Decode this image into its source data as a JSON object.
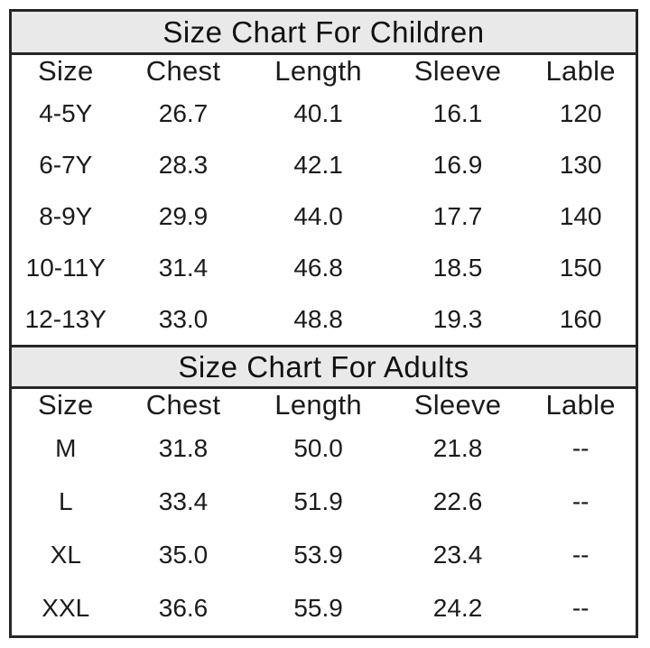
{
  "colors": {
    "border": "#262626",
    "band_bg": "#e9e9e9",
    "text": "#1b1b1b",
    "page_bg": "#ffffff"
  },
  "chart_data": [
    {
      "type": "table",
      "title": "Size Chart For Children",
      "columns": [
        "Size",
        "Chest",
        "Length",
        "Sleeve",
        "Lable"
      ],
      "rows": [
        [
          "4-5Y",
          "26.7",
          "40.1",
          "16.1",
          "120"
        ],
        [
          "6-7Y",
          "28.3",
          "42.1",
          "16.9",
          "130"
        ],
        [
          "8-9Y",
          "29.9",
          "44.0",
          "17.7",
          "140"
        ],
        [
          "10-11Y",
          "31.4",
          "46.8",
          "18.5",
          "150"
        ],
        [
          "12-13Y",
          "33.0",
          "48.8",
          "19.3",
          "160"
        ]
      ]
    },
    {
      "type": "table",
      "title": "Size Chart For Adults",
      "columns": [
        "Size",
        "Chest",
        "Length",
        "Sleeve",
        "Lable"
      ],
      "rows": [
        [
          "M",
          "31.8",
          "50.0",
          "21.8",
          "--"
        ],
        [
          "L",
          "33.4",
          "51.9",
          "22.6",
          "--"
        ],
        [
          "XL",
          "35.0",
          "53.9",
          "23.4",
          "--"
        ],
        [
          "XXL",
          "36.6",
          "55.9",
          "24.2",
          "--"
        ]
      ]
    }
  ]
}
